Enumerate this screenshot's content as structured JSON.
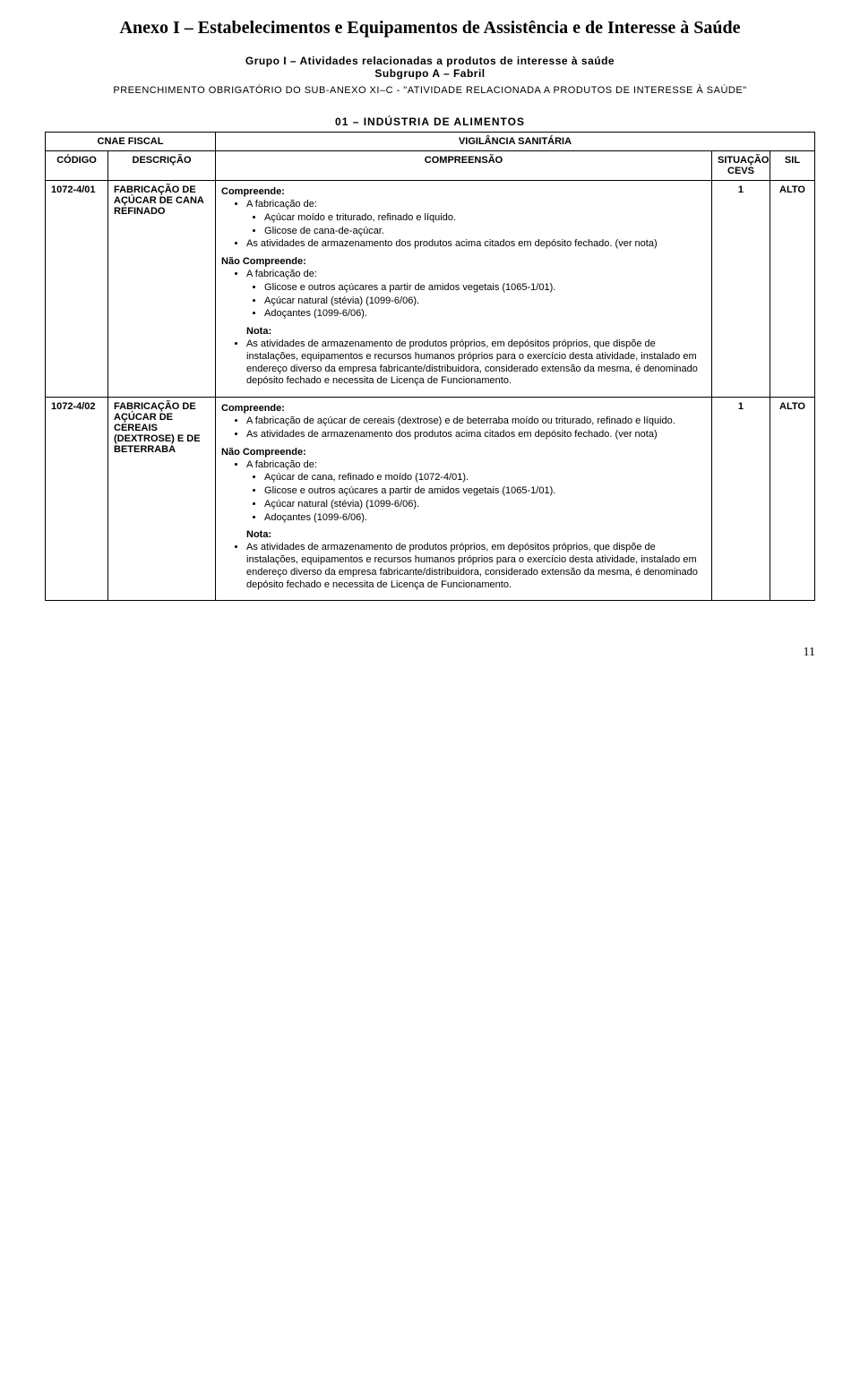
{
  "page": {
    "title": "Anexo I – Estabelecimentos e Equipamentos de Assistência e de Interesse à Saúde",
    "sub1": "Grupo I – Atividades relacionadas a produtos de interesse à saúde",
    "sub2": "Subgrupo A – Fabril",
    "sub3": "PREENCHIMENTO OBRIGATÓRIO DO SUB-ANEXO XI–C - \"ATIVIDADE RELACIONADA A PRODUTOS DE INTERESSE À SAÚDE\"",
    "section_heading": "01 – INDÚSTRIA DE ALIMENTOS",
    "page_number": "11"
  },
  "table": {
    "header": {
      "cnae": "CNAE FISCAL",
      "vig": "VIGILÂNCIA SANITÁRIA",
      "codigo": "CÓDIGO",
      "descricao": "DESCRIÇÃO",
      "compreensao": "COMPREENSÃO",
      "situacao": "SITUAÇÃO CEVS",
      "sil": "SIL"
    },
    "rows": [
      {
        "codigo": "1072-4/01",
        "descricao": "FABRICAÇÃO DE AÇÚCAR DE CANA REFINADO",
        "situacao": "1",
        "sil": "ALTO",
        "compreende_label": "Compreende:",
        "compreende_intro": "A fabricação de:",
        "compreende_items": [
          "Açúcar moído e triturado, refinado e líquido.",
          "Glicose de cana-de-açúcar."
        ],
        "compreende_extra": "As atividades de armazenamento dos produtos acima citados em depósito fechado. (ver nota)",
        "nao_label": "Não Compreende:",
        "nao_intro": "A fabricação de:",
        "nao_items": [
          "Glicose e outros açúcares a partir de amidos vegetais (1065-1/01).",
          "Açúcar natural (stévia) (1099-6/06).",
          "Adoçantes (1099-6/06)."
        ],
        "nota_label": "Nota:",
        "nota_text": "As atividades de armazenamento de produtos próprios, em depósitos próprios, que dispõe de instalações, equipamentos e recursos humanos próprios para o exercício desta atividade, instalado em endereço diverso da empresa fabricante/distribuidora, considerado extensão da mesma, é denominado depósito fechado e necessita de Licença de Funcionamento."
      },
      {
        "codigo": "1072-4/02",
        "descricao": "FABRICAÇÃO DE AÇÚCAR DE CEREAIS (DEXTROSE) E DE BETERRABA",
        "situacao": "1",
        "sil": "ALTO",
        "compreende_label": "Compreende:",
        "compreende_items_flat": [
          "A fabricação de açúcar de cereais (dextrose) e de beterraba moído ou triturado, refinado e líquido.",
          "As atividades de armazenamento dos produtos acima citados em depósito fechado. (ver nota)"
        ],
        "nao_label": "Não Compreende:",
        "nao_intro": "A fabricação de:",
        "nao_items": [
          "Açúcar de cana, refinado e moído (1072-4/01).",
          "Glicose e outros açúcares a partir de amidos vegetais (1065-1/01).",
          "Açúcar natural (stévia) (1099-6/06).",
          "Adoçantes (1099-6/06)."
        ],
        "nota_label": "Nota:",
        "nota_text": "As atividades de armazenamento de produtos próprios, em depósitos próprios, que dispõe de instalações, equipamentos e recursos humanos próprios para o exercício desta atividade, instalado em endereço diverso da empresa fabricante/distribuidora, considerado extensão da mesma, é denominado depósito fechado e necessita de Licença de Funcionamento."
      }
    ]
  }
}
